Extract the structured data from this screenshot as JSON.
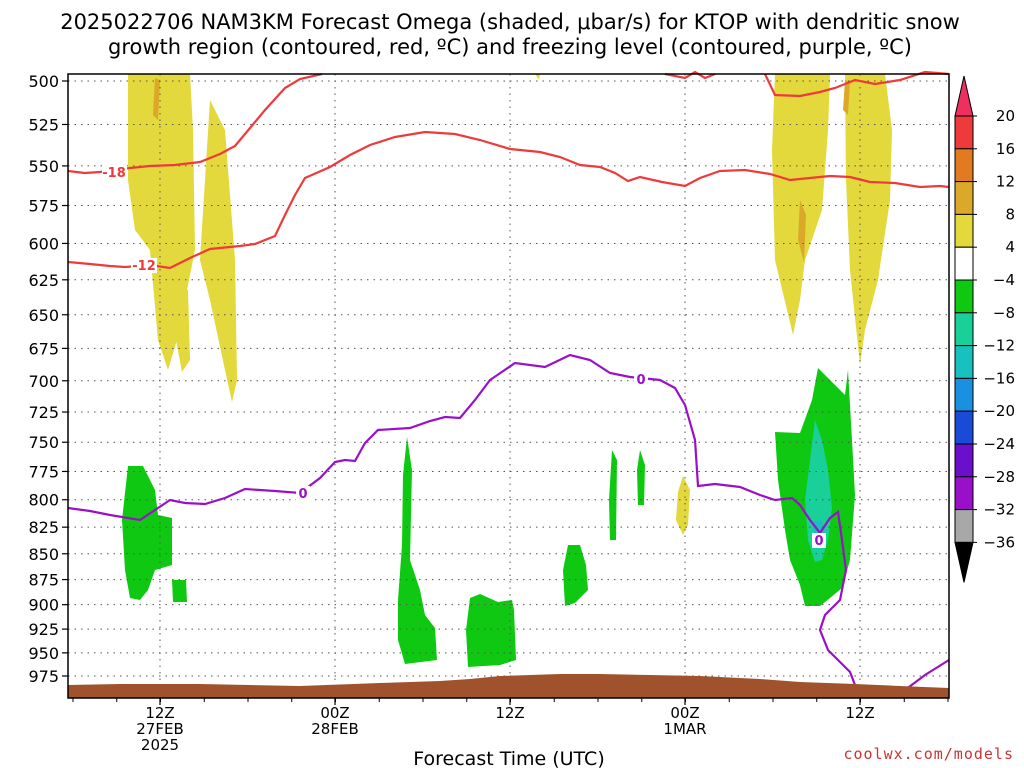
{
  "title": {
    "line1": "2025022706 NAM3KM Forecast Omega (shaded, μbar/s) for KTOP with dendritic snow",
    "line2": "growth region (contoured, red, ºC) and freezing level (contoured, purple, ºC)"
  },
  "credit": "coolwx.com/models",
  "colors": {
    "dendritic": "#ee3a3a",
    "freezing": "#9a10c8",
    "terrain": "#a0522d",
    "grid": "#555555"
  },
  "chart_data": {
    "type": "heatmap",
    "xlabel": "Forecast Time (UTC)",
    "y_ticks": [
      500,
      525,
      550,
      575,
      600,
      625,
      650,
      675,
      700,
      725,
      750,
      775,
      800,
      825,
      850,
      875,
      900,
      925,
      950,
      975
    ],
    "x_ticks": [
      {
        "line1": "12Z",
        "line2": "27FEB",
        "line3": "2025"
      },
      {
        "line1": "00Z",
        "line2": "28FEB",
        "line3": ""
      },
      {
        "line1": "12Z",
        "line2": "",
        "line3": ""
      },
      {
        "line1": "00Z",
        "line2": "1MAR",
        "line3": ""
      },
      {
        "line1": "12Z",
        "line2": "",
        "line3": ""
      }
    ],
    "grid": true,
    "colorbar": {
      "labels": [
        "20",
        "16",
        "12",
        "8",
        "4",
        "−4",
        "−8",
        "−12",
        "−16",
        "−20",
        "−24",
        "−28",
        "−32",
        "−36"
      ],
      "colors": [
        "#ee3060",
        "#ee3a3a",
        "#e27a22",
        "#dca82a",
        "#e3d83c",
        "#ffffff",
        "#0fc812",
        "#18d098",
        "#18c0c0",
        "#1a90e0",
        "#1a4ad8",
        "#6a10cc",
        "#9a10c8",
        "#a8a8a8"
      ]
    },
    "contours": [
      {
        "value": "-18",
        "color": "#ee3a3a"
      },
      {
        "value": "-12",
        "color": "#ee3a3a"
      },
      {
        "value": "0",
        "color": "#9a10c8"
      }
    ]
  }
}
